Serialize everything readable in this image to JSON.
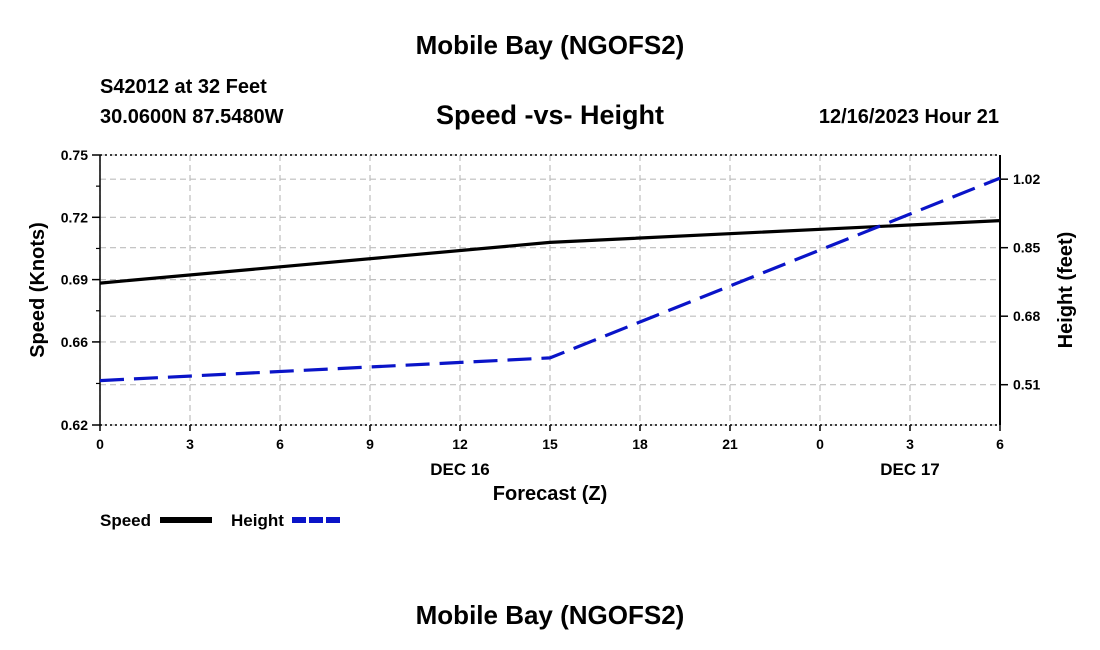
{
  "page": {
    "title_top": "Mobile Bay (NGOFS2)",
    "title_bottom": "Mobile Bay (NGOFS2)",
    "station": "S42012 at 32 Feet",
    "coords": "30.0600N  87.5480W",
    "subtitle": "Speed -vs- Height",
    "datetime": "12/16/2023 Hour 21"
  },
  "colors": {
    "speed": "#000000",
    "height": "#0a14c8",
    "grid": "#bdbdbd"
  },
  "chart_data": {
    "type": "line",
    "title": "Speed -vs- Height",
    "xlabel": "Forecast (Z)",
    "ylabel_left": "Speed (Knots)",
    "ylabel_right": "Height (feet)",
    "x_hours_range": [
      0,
      30
    ],
    "x_ticks": [
      {
        "h": 0,
        "label": "0"
      },
      {
        "h": 3,
        "label": "3"
      },
      {
        "h": 6,
        "label": "6"
      },
      {
        "h": 9,
        "label": "9"
      },
      {
        "h": 12,
        "label": "12"
      },
      {
        "h": 15,
        "label": "15"
      },
      {
        "h": 18,
        "label": "18"
      },
      {
        "h": 21,
        "label": "21"
      },
      {
        "h": 24,
        "label": "0"
      },
      {
        "h": 27,
        "label": "3"
      },
      {
        "h": 30,
        "label": "6"
      }
    ],
    "date_labels": [
      {
        "h": 12,
        "label": "DEC 16"
      },
      {
        "h": 27,
        "label": "DEC 17"
      }
    ],
    "ylim_left": [
      0.62,
      0.75
    ],
    "yticks_left": [
      "0.62",
      "0.66",
      "0.69",
      "0.72",
      "0.75"
    ],
    "ylim_right": [
      0.41,
      1.08
    ],
    "yticks_right": [
      "0.51",
      "0.68",
      "0.85",
      "1.02"
    ],
    "series": [
      {
        "name": "Speed",
        "axis": "left",
        "style": "solid",
        "points": [
          [
            0,
            0.6883
          ],
          [
            15,
            0.7079
          ],
          [
            30,
            0.7184
          ]
        ]
      },
      {
        "name": "Height",
        "axis": "right",
        "style": "dashed",
        "points": [
          [
            0,
            0.5203
          ],
          [
            15,
            0.5765
          ],
          [
            30,
            1.0227
          ]
        ]
      }
    ],
    "legend": [
      {
        "name": "Speed"
      },
      {
        "name": "Height"
      }
    ],
    "legend_position": "bottom-left",
    "grid": true
  }
}
